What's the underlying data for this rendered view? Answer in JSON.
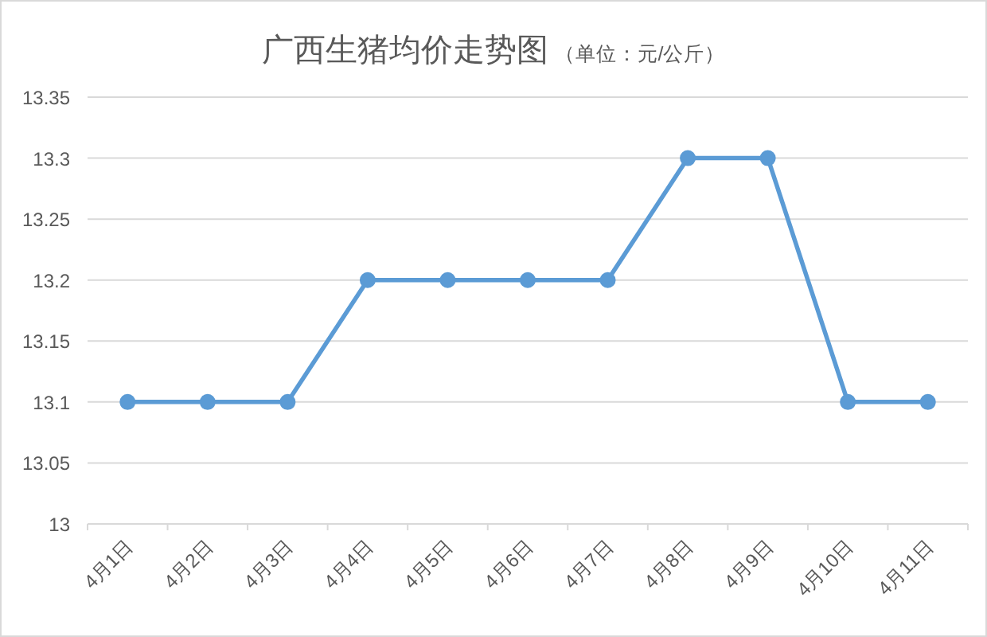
{
  "chart_data": {
    "type": "line",
    "title": "广西生猪均价走势图",
    "subtitle": "（单位：元/公斤）",
    "categories": [
      "4月1日",
      "4月2日",
      "4月3日",
      "4月4日",
      "4月5日",
      "4月6日",
      "4月7日",
      "4月8日",
      "4月9日",
      "4月10日",
      "4月11日"
    ],
    "series": [
      {
        "color": "#5b9bd5",
        "values": [
          13.1,
          13.1,
          13.1,
          13.2,
          13.2,
          13.2,
          13.2,
          13.3,
          13.3,
          13.1,
          13.1
        ]
      }
    ],
    "ylim": [
      13,
      13.35
    ],
    "yticks": [
      13,
      13.05,
      13.1,
      13.15,
      13.2,
      13.25,
      13.3,
      13.35
    ],
    "grid": "y",
    "marker": "circle",
    "line_style": "solid"
  }
}
